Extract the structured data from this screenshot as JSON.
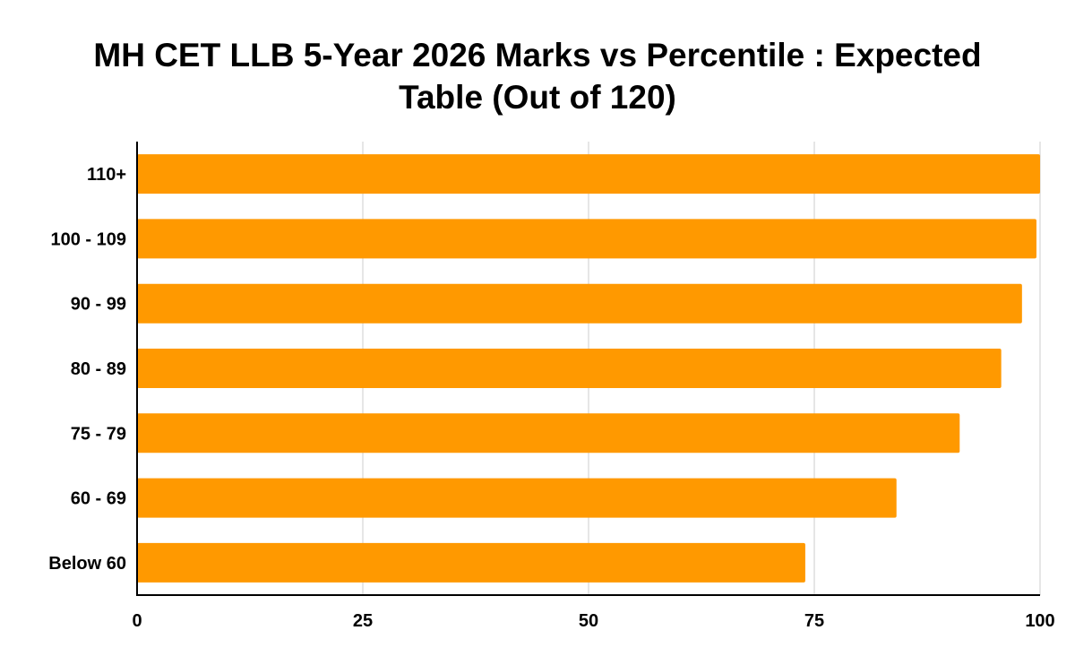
{
  "chart_data": {
    "type": "bar",
    "orientation": "horizontal",
    "title_lines": [
      "MH CET LLB 5-Year 2026 Marks vs Percentile : Expected",
      "Table (Out of 120)"
    ],
    "categories": [
      "110+",
      "100 - 109",
      "90 - 99",
      "80 - 89",
      "75 - 79",
      "60 - 69",
      "Below 60"
    ],
    "series": [
      {
        "values": [
          100,
          99.6,
          98,
          95.7,
          91.1,
          84.1,
          74
        ]
      }
    ],
    "x_ticks": [
      "0",
      "25",
      "50",
      "75",
      "100"
    ],
    "xlim": [
      0,
      100
    ],
    "xlabel": "",
    "ylabel": "",
    "grid": true,
    "legend": "none",
    "bar_color": "#ff9900",
    "grid_color": "#cccccc",
    "axis_color": "#000000"
  }
}
